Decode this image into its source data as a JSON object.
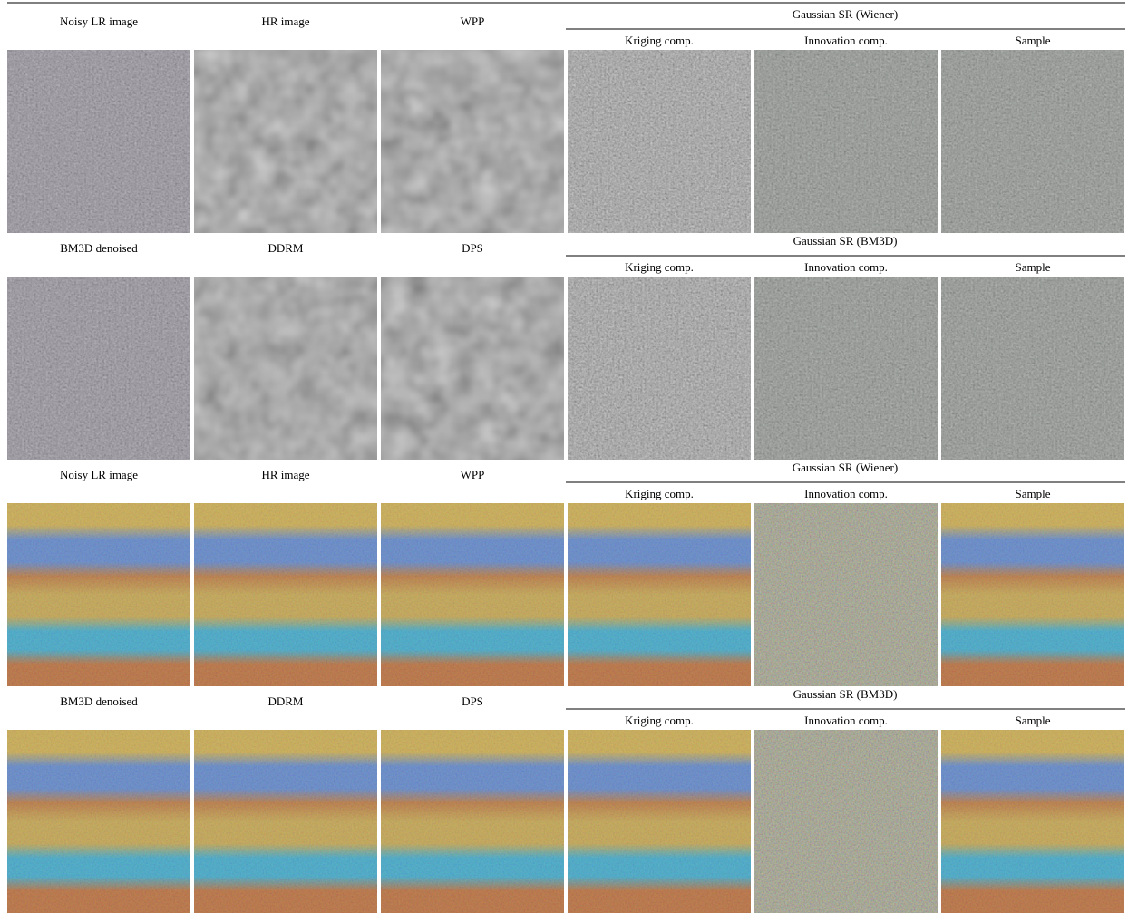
{
  "blocks": [
    {
      "left_labels": [
        "Noisy LR image",
        "HR image",
        "WPP"
      ],
      "group_title": "Gaussian SR (Wiener)",
      "sub_labels": [
        "Kriging comp.",
        "Innovation comp.",
        "Sample"
      ]
    },
    {
      "left_labels": [
        "BM3D denoised",
        "DDRM",
        "DPS"
      ],
      "group_title": "Gaussian SR (BM3D)",
      "sub_labels": [
        "Kriging comp.",
        "Innovation comp.",
        "Sample"
      ]
    },
    {
      "left_labels": [
        "Noisy LR image",
        "HR image",
        "WPP"
      ],
      "group_title": "Gaussian SR (Wiener)",
      "sub_labels": [
        "Kriging comp.",
        "Innovation comp.",
        "Sample"
      ]
    },
    {
      "left_labels": [
        "BM3D denoised",
        "DDRM",
        "DPS"
      ],
      "group_title": "Gaussian SR (BM3D)",
      "sub_labels": [
        "Kriging comp.",
        "Innovation comp.",
        "Sample"
      ]
    }
  ]
}
